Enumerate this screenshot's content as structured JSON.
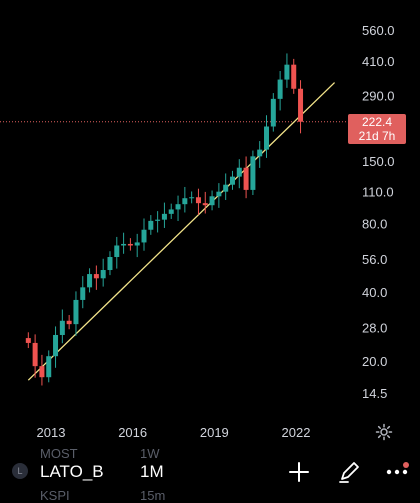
{
  "chart_data": {
    "type": "candlestick",
    "y_scale": "log",
    "y_ticks": [
      14.5,
      20.0,
      28.0,
      40.0,
      56.0,
      80.0,
      110.0,
      150.0,
      290.0,
      410.0,
      560.0
    ],
    "y_tick_labels": [
      "14.5",
      "20.0",
      "28.0",
      "40.0",
      "56.0",
      "80.0",
      "110.0",
      "150.0",
      "290.0",
      "410.0",
      "560.0"
    ],
    "x_ticks": [
      "2013",
      "2016",
      "2019",
      "2022"
    ],
    "ylim": [
      12,
      600
    ],
    "series": [
      {
        "x": [
          "2012-03",
          "2012-06",
          "2012-09",
          "2012-12",
          "2013-03",
          "2013-06",
          "2013-09",
          "2013-12",
          "2014-03",
          "2014-06",
          "2014-09",
          "2014-12",
          "2015-03",
          "2015-06",
          "2015-09",
          "2015-12",
          "2016-03",
          "2016-06",
          "2016-09",
          "2016-12",
          "2017-03",
          "2017-06",
          "2017-09",
          "2017-12",
          "2018-03",
          "2018-06",
          "2018-09",
          "2018-12",
          "2019-03",
          "2019-06",
          "2019-09",
          "2019-12",
          "2020-03",
          "2020-06",
          "2020-09",
          "2020-12",
          "2021-03",
          "2021-06",
          "2021-09",
          "2021-12",
          "2022-03"
        ],
        "values": [
          24,
          19,
          17,
          21,
          26,
          30,
          29,
          37,
          42,
          48,
          46,
          50,
          57,
          64,
          65,
          64,
          66,
          75,
          82,
          83,
          88,
          92,
          97,
          103,
          104,
          98,
          96,
          105,
          110,
          118,
          128,
          140,
          112,
          157,
          168,
          212,
          280,
          340,
          395,
          310,
          222.4
        ]
      }
    ],
    "trendline": {
      "from": {
        "x": "2012-03",
        "y": 16.5
      },
      "to": {
        "x": "2023-06",
        "y": 330
      }
    },
    "last_price": "222.4",
    "countdown": "21d 7h",
    "price_line_color": "#e0605e",
    "up_color": "#26a69a",
    "down_color": "#ef5350",
    "trendline_color": "#f3e48a"
  },
  "toolbar": {
    "symbol": "LATO_B",
    "interval": "1M",
    "symbol_badge": "L",
    "ghost_1": "MOST",
    "ghost_1b": "1W",
    "ghost_2": "KSPI",
    "ghost_2b": "15m"
  },
  "icons": {
    "add": "plus-icon",
    "draw": "pen-icon",
    "more": "more-dots-icon",
    "settings": "gear-icon"
  }
}
